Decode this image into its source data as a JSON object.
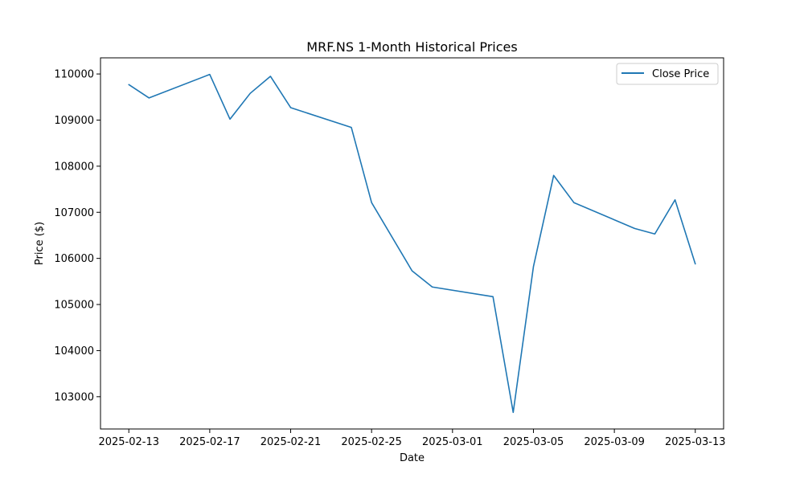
{
  "chart_data": {
    "type": "line",
    "title": "MRF.NS 1-Month Historical Prices",
    "xlabel": "Date",
    "ylabel": "Price ($)",
    "x_ticks": [
      "2025-02-13",
      "2025-02-17",
      "2025-02-21",
      "2025-02-25",
      "2025-03-01",
      "2025-03-05",
      "2025-03-09",
      "2025-03-13"
    ],
    "y_ticks": [
      103000,
      104000,
      105000,
      106000,
      107000,
      108000,
      109000,
      110000
    ],
    "xlim": [
      "2025-02-11 14:24",
      "2025-03-14 09:36"
    ],
    "ylim": [
      102300,
      110350
    ],
    "grid": false,
    "legend_position": "top-right",
    "series": [
      {
        "name": "Close Price",
        "color": "#1f77b4",
        "x": [
          "2025-02-13",
          "2025-02-14",
          "2025-02-17",
          "2025-02-18",
          "2025-02-19",
          "2025-02-20",
          "2025-02-21",
          "2025-02-24",
          "2025-02-25",
          "2025-02-27",
          "2025-02-28",
          "2025-03-03",
          "2025-03-04",
          "2025-03-05",
          "2025-03-06",
          "2025-03-07",
          "2025-03-10",
          "2025-03-11",
          "2025-03-12",
          "2025-03-13"
        ],
        "y": [
          109770,
          109480,
          109990,
          109020,
          109580,
          109950,
          109270,
          108840,
          107210,
          105730,
          105380,
          105170,
          102660,
          105820,
          107800,
          107210,
          106650,
          106530,
          107270,
          105880
        ]
      }
    ]
  }
}
